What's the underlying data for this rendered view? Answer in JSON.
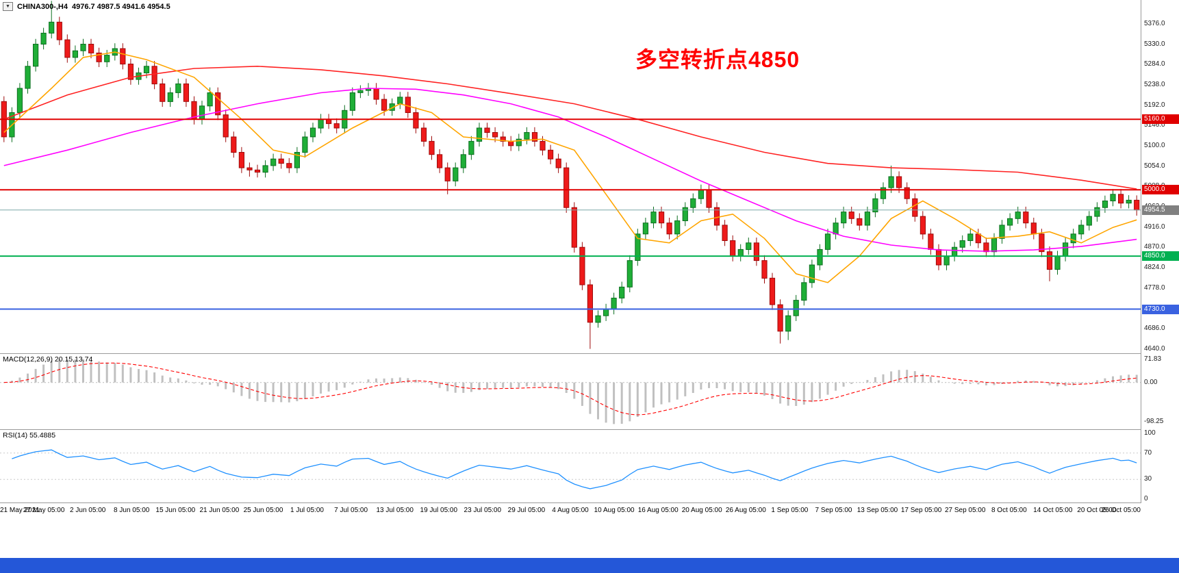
{
  "window": {
    "symbol_timeframe": "CHINA300-,H4",
    "ohlc_text": "4976.7 4987.5 4941.6 4954.5"
  },
  "annotation": {
    "text": "多空转折点4850",
    "color": "#ff0000"
  },
  "colors": {
    "bull": "#1fae37",
    "bull_border": "#0c6e20",
    "bear": "#ee1a1a",
    "bear_border": "#9d0b0b",
    "macd_hist": "#c0c0c0",
    "macd_signal": "#ff0000",
    "rsi_line": "#1e90ff",
    "price_line": "#7ba7a7",
    "price_tag": "#808080",
    "axis_text": "#1a1a1a",
    "separator": "#9a9a9a",
    "taskbar": "#2457d8"
  },
  "price_axis": {
    "max": 5430,
    "min": 4630,
    "ticks": [
      "5376.0",
      "5330.0",
      "5284.0",
      "5238.0",
      "5192.0",
      "5146.0",
      "5100.0",
      "5054.0",
      "5008.0",
      "4962.0",
      "4916.0",
      "4870.0",
      "4824.0",
      "4778.0",
      "4732.0",
      "4686.0",
      "4640.0"
    ]
  },
  "chart_data": {
    "type": "candlestick",
    "symbol": "CHINA300-",
    "timeframe": "H4",
    "title": "CHINA300-,H4 4976.7 4987.5 4941.6 4954.5",
    "x_labels": [
      "21 May 2021",
      "27 May 05:00",
      "2 Jun 05:00",
      "8 Jun 05:00",
      "15 Jun 05:00",
      "21 Jun 05:00",
      "25 Jun 05:00",
      "1 Jul 05:00",
      "7 Jul 05:00",
      "13 Jul 05:00",
      "19 Jul 05:00",
      "23 Jul 05:00",
      "29 Jul 05:00",
      "4 Aug 05:00",
      "10 Aug 05:00",
      "16 Aug 05:00",
      "20 Aug 05:00",
      "26 Aug 05:00",
      "1 Sep 05:00",
      "7 Sep 05:00",
      "13 Sep 05:00",
      "17 Sep 05:00",
      "27 Sep 05:00",
      "8 Oct 05:00",
      "14 Oct 05:00",
      "20 Oct 05:00",
      "26 Oct 05:00"
    ],
    "candles": [
      [
        5200,
        5212,
        5108,
        5120
      ],
      [
        5120,
        5187,
        5108,
        5175
      ],
      [
        5175,
        5242,
        5163,
        5230
      ],
      [
        5230,
        5292,
        5218,
        5280
      ],
      [
        5280,
        5342,
        5268,
        5330
      ],
      [
        5330,
        5367,
        5318,
        5355
      ],
      [
        5355,
        5428,
        5343,
        5380
      ],
      [
        5380,
        5392,
        5328,
        5340
      ],
      [
        5340,
        5352,
        5288,
        5300
      ],
      [
        5300,
        5327,
        5288,
        5315
      ],
      [
        5315,
        5342,
        5303,
        5330
      ],
      [
        5330,
        5342,
        5298,
        5310
      ],
      [
        5310,
        5322,
        5278,
        5290
      ],
      [
        5290,
        5317,
        5278,
        5305
      ],
      [
        5305,
        5332,
        5293,
        5320
      ],
      [
        5320,
        5332,
        5273,
        5285
      ],
      [
        5285,
        5297,
        5238,
        5250
      ],
      [
        5250,
        5277,
        5238,
        5265
      ],
      [
        5265,
        5292,
        5253,
        5280
      ],
      [
        5280,
        5292,
        5228,
        5240
      ],
      [
        5240,
        5252,
        5188,
        5200
      ],
      [
        5200,
        5232,
        5188,
        5220
      ],
      [
        5220,
        5252,
        5208,
        5240
      ],
      [
        5240,
        5252,
        5188,
        5200
      ],
      [
        5200,
        5212,
        5148,
        5160
      ],
      [
        5160,
        5202,
        5148,
        5190
      ],
      [
        5190,
        5232,
        5178,
        5220
      ],
      [
        5220,
        5232,
        5158,
        5170
      ],
      [
        5170,
        5182,
        5108,
        5120
      ],
      [
        5120,
        5132,
        5073,
        5085
      ],
      [
        5085,
        5097,
        5038,
        5050
      ],
      [
        5050,
        5062,
        5030,
        5045
      ],
      [
        5045,
        5057,
        5028,
        5040
      ],
      [
        5040,
        5067,
        5028,
        5055
      ],
      [
        5055,
        5082,
        5043,
        5070
      ],
      [
        5070,
        5082,
        5048,
        5060
      ],
      [
        5060,
        5072,
        5038,
        5050
      ],
      [
        5050,
        5097,
        5038,
        5085
      ],
      [
        5085,
        5132,
        5073,
        5120
      ],
      [
        5120,
        5152,
        5108,
        5140
      ],
      [
        5140,
        5172,
        5128,
        5160
      ],
      [
        5160,
        5172,
        5138,
        5150
      ],
      [
        5150,
        5162,
        5128,
        5140
      ],
      [
        5140,
        5192,
        5128,
        5180
      ],
      [
        5180,
        5232,
        5168,
        5220
      ],
      [
        5220,
        5237,
        5208,
        5225
      ],
      [
        5225,
        5242,
        5213,
        5230
      ],
      [
        5230,
        5242,
        5193,
        5205
      ],
      [
        5205,
        5217,
        5168,
        5180
      ],
      [
        5180,
        5207,
        5168,
        5195
      ],
      [
        5195,
        5222,
        5183,
        5210
      ],
      [
        5210,
        5222,
        5163,
        5175
      ],
      [
        5175,
        5187,
        5128,
        5140
      ],
      [
        5140,
        5152,
        5098,
        5110
      ],
      [
        5110,
        5122,
        5068,
        5080
      ],
      [
        5080,
        5092,
        5038,
        5050
      ],
      [
        5050,
        5062,
        4990,
        5020
      ],
      [
        5020,
        5062,
        5008,
        5050
      ],
      [
        5050,
        5092,
        5038,
        5080
      ],
      [
        5080,
        5122,
        5068,
        5110
      ],
      [
        5110,
        5152,
        5098,
        5140
      ],
      [
        5140,
        5152,
        5118,
        5130
      ],
      [
        5130,
        5142,
        5108,
        5120
      ],
      [
        5120,
        5132,
        5098,
        5110
      ],
      [
        5110,
        5122,
        5088,
        5100
      ],
      [
        5100,
        5127,
        5088,
        5115
      ],
      [
        5115,
        5142,
        5103,
        5130
      ],
      [
        5130,
        5142,
        5098,
        5110
      ],
      [
        5110,
        5122,
        5078,
        5090
      ],
      [
        5090,
        5102,
        5058,
        5070
      ],
      [
        5070,
        5082,
        5038,
        5050
      ],
      [
        5050,
        5062,
        4948,
        4960
      ],
      [
        4960,
        4972,
        4858,
        4870
      ],
      [
        4870,
        4882,
        4773,
        4785
      ],
      [
        4785,
        4797,
        4640,
        4700
      ],
      [
        4700,
        4727,
        4688,
        4715
      ],
      [
        4715,
        4742,
        4703,
        4730
      ],
      [
        4730,
        4767,
        4718,
        4755
      ],
      [
        4755,
        4792,
        4743,
        4780
      ],
      [
        4780,
        4852,
        4768,
        4840
      ],
      [
        4840,
        4912,
        4828,
        4900
      ],
      [
        4900,
        4937,
        4888,
        4925
      ],
      [
        4925,
        4962,
        4913,
        4950
      ],
      [
        4950,
        4962,
        4913,
        4925
      ],
      [
        4925,
        4937,
        4888,
        4900
      ],
      [
        4900,
        4942,
        4888,
        4930
      ],
      [
        4930,
        4972,
        4918,
        4960
      ],
      [
        4960,
        4992,
        4948,
        4980
      ],
      [
        4980,
        5012,
        4968,
        5000
      ],
      [
        5000,
        5012,
        4948,
        4960
      ],
      [
        4960,
        4972,
        4908,
        4920
      ],
      [
        4920,
        4932,
        4873,
        4885
      ],
      [
        4885,
        4897,
        4838,
        4850
      ],
      [
        4850,
        4877,
        4838,
        4865
      ],
      [
        4865,
        4892,
        4853,
        4880
      ],
      [
        4880,
        4892,
        4828,
        4840
      ],
      [
        4840,
        4852,
        4788,
        4800
      ],
      [
        4800,
        4812,
        4728,
        4740
      ],
      [
        4740,
        4752,
        4652,
        4680
      ],
      [
        4680,
        4727,
        4660,
        4715
      ],
      [
        4715,
        4762,
        4703,
        4750
      ],
      [
        4750,
        4802,
        4738,
        4790
      ],
      [
        4790,
        4842,
        4778,
        4830
      ],
      [
        4830,
        4877,
        4818,
        4865
      ],
      [
        4865,
        4912,
        4853,
        4900
      ],
      [
        4900,
        4937,
        4888,
        4925
      ],
      [
        4925,
        4962,
        4913,
        4950
      ],
      [
        4950,
        4962,
        4923,
        4935
      ],
      [
        4935,
        4947,
        4908,
        4920
      ],
      [
        4920,
        4962,
        4908,
        4950
      ],
      [
        4950,
        4992,
        4938,
        4980
      ],
      [
        4980,
        5017,
        4968,
        5005
      ],
      [
        5005,
        5055,
        4993,
        5030
      ],
      [
        5030,
        5042,
        4993,
        5005
      ],
      [
        5005,
        5017,
        4968,
        4980
      ],
      [
        4980,
        4992,
        4928,
        4940
      ],
      [
        4940,
        4952,
        4888,
        4900
      ],
      [
        4900,
        4912,
        4853,
        4865
      ],
      [
        4865,
        4877,
        4818,
        4830
      ],
      [
        4830,
        4862,
        4818,
        4850
      ],
      [
        4850,
        4882,
        4838,
        4870
      ],
      [
        4870,
        4897,
        4858,
        4885
      ],
      [
        4885,
        4912,
        4873,
        4900
      ],
      [
        4900,
        4912,
        4868,
        4880
      ],
      [
        4880,
        4892,
        4848,
        4860
      ],
      [
        4860,
        4902,
        4848,
        4890
      ],
      [
        4890,
        4932,
        4878,
        4920
      ],
      [
        4920,
        4947,
        4908,
        4935
      ],
      [
        4935,
        4962,
        4923,
        4950
      ],
      [
        4950,
        4962,
        4913,
        4925
      ],
      [
        4925,
        4937,
        4888,
        4900
      ],
      [
        4900,
        4912,
        4848,
        4860
      ],
      [
        4860,
        4872,
        4793,
        4820
      ],
      [
        4820,
        4862,
        4808,
        4850
      ],
      [
        4850,
        4892,
        4838,
        4880
      ],
      [
        4880,
        4912,
        4868,
        4900
      ],
      [
        4900,
        4932,
        4888,
        4920
      ],
      [
        4920,
        4952,
        4908,
        4940
      ],
      [
        4940,
        4972,
        4928,
        4960
      ],
      [
        4960,
        4987,
        4948,
        4975
      ],
      [
        4975,
        5002,
        4963,
        4990
      ],
      [
        4990,
        5002,
        4958,
        4970
      ],
      [
        4970,
        4988,
        4958,
        4976.7
      ],
      [
        4976.7,
        4987.5,
        4941.6,
        4954.5
      ]
    ],
    "ma_lines": [
      {
        "name": "ma-slow-red",
        "color": "#ff2222",
        "points": [
          [
            0,
            5160
          ],
          [
            8,
            5215
          ],
          [
            16,
            5255
          ],
          [
            24,
            5275
          ],
          [
            32,
            5280
          ],
          [
            40,
            5272
          ],
          [
            48,
            5258
          ],
          [
            56,
            5240
          ],
          [
            64,
            5218
          ],
          [
            72,
            5195
          ],
          [
            80,
            5160
          ],
          [
            88,
            5120
          ],
          [
            96,
            5085
          ],
          [
            104,
            5060
          ],
          [
            112,
            5050
          ],
          [
            120,
            5046
          ],
          [
            128,
            5040
          ],
          [
            136,
            5022
          ],
          [
            143,
            5002
          ]
        ]
      },
      {
        "name": "ma-mid-magenta",
        "color": "#ff00ff",
        "points": [
          [
            0,
            5055
          ],
          [
            8,
            5090
          ],
          [
            16,
            5130
          ],
          [
            24,
            5165
          ],
          [
            32,
            5195
          ],
          [
            40,
            5220
          ],
          [
            46,
            5230
          ],
          [
            52,
            5228
          ],
          [
            58,
            5215
          ],
          [
            64,
            5195
          ],
          [
            70,
            5165
          ],
          [
            76,
            5120
          ],
          [
            82,
            5070
          ],
          [
            88,
            5020
          ],
          [
            94,
            4975
          ],
          [
            100,
            4930
          ],
          [
            106,
            4895
          ],
          [
            112,
            4875
          ],
          [
            118,
            4864
          ],
          [
            124,
            4861
          ],
          [
            130,
            4864
          ],
          [
            136,
            4872
          ],
          [
            143,
            4888
          ]
        ]
      },
      {
        "name": "ma-fast-orange",
        "color": "#ffa500",
        "points": [
          [
            0,
            5130
          ],
          [
            6,
            5230
          ],
          [
            10,
            5300
          ],
          [
            14,
            5312
          ],
          [
            18,
            5295
          ],
          [
            24,
            5255
          ],
          [
            30,
            5160
          ],
          [
            34,
            5090
          ],
          [
            38,
            5075
          ],
          [
            44,
            5140
          ],
          [
            50,
            5195
          ],
          [
            54,
            5175
          ],
          [
            58,
            5120
          ],
          [
            64,
            5110
          ],
          [
            68,
            5115
          ],
          [
            72,
            5090
          ],
          [
            76,
            4990
          ],
          [
            80,
            4890
          ],
          [
            84,
            4880
          ],
          [
            88,
            4930
          ],
          [
            92,
            4945
          ],
          [
            96,
            4890
          ],
          [
            100,
            4810
          ],
          [
            104,
            4790
          ],
          [
            108,
            4850
          ],
          [
            112,
            4935
          ],
          [
            116,
            4975
          ],
          [
            120,
            4935
          ],
          [
            124,
            4890
          ],
          [
            128,
            4895
          ],
          [
            132,
            4905
          ],
          [
            136,
            4880
          ],
          [
            140,
            4915
          ],
          [
            143,
            4932
          ]
        ]
      }
    ],
    "levels": [
      {
        "value": 5160,
        "label": "5160.0",
        "color": "#e00000"
      },
      {
        "value": 5000,
        "label": "5000.0",
        "color": "#e00000"
      },
      {
        "value": 4850,
        "label": "4850.0",
        "color": "#00b050"
      },
      {
        "value": 4730,
        "label": "4730.0",
        "color": "#3a62e0"
      }
    ],
    "current_price": {
      "value": 4954.5,
      "label": "4954.5"
    },
    "indicators": {
      "macd": {
        "label": "MACD(12,26,9) 20.15,13.74",
        "fast": 12,
        "slow": 26,
        "signal": 9,
        "axis_labels": [
          {
            "text": "71.83",
            "value": 71.83
          },
          {
            "text": "0.00",
            "value": 0
          },
          {
            "text": "-98.25",
            "value": -98.25
          }
        ]
      },
      "rsi": {
        "label": "RSI(14) 55.4885",
        "period": 14,
        "value": 55.4885,
        "levels": [
          70,
          30
        ],
        "axis_labels": [
          {
            "text": "100",
            "value": 100
          },
          {
            "text": "70",
            "value": 70
          },
          {
            "text": "30",
            "value": 30
          },
          {
            "text": "0",
            "value": 0
          }
        ]
      }
    }
  }
}
